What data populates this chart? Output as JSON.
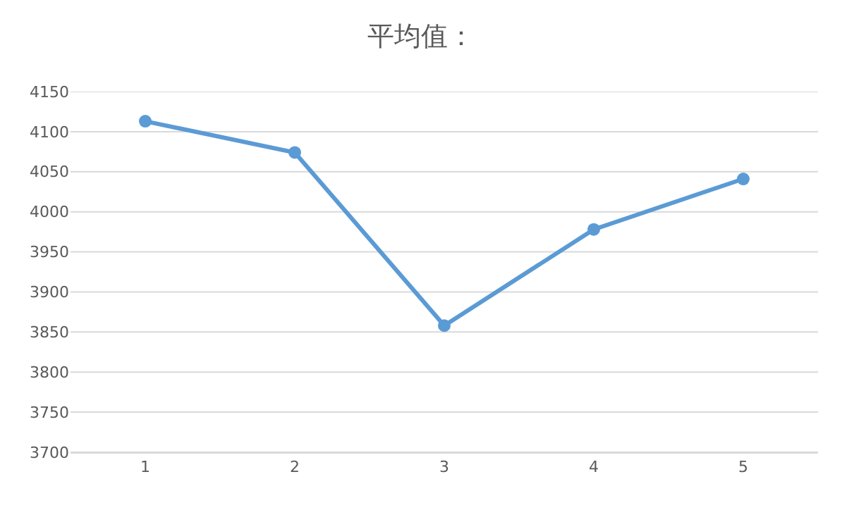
{
  "chart_data": {
    "type": "line",
    "title": "平均值：",
    "categories": [
      "1",
      "2",
      "3",
      "4",
      "5"
    ],
    "series": [
      {
        "color": "#5b9bd5",
        "values": [
          4113,
          4074,
          3858,
          3978,
          4041
        ]
      }
    ],
    "ylim": [
      3700,
      4150
    ],
    "yticks": [
      3700,
      3750,
      3800,
      3850,
      3900,
      3950,
      4000,
      4050,
      4100,
      4150
    ],
    "grid": "y",
    "marker": "circle",
    "line_style": "solid"
  }
}
